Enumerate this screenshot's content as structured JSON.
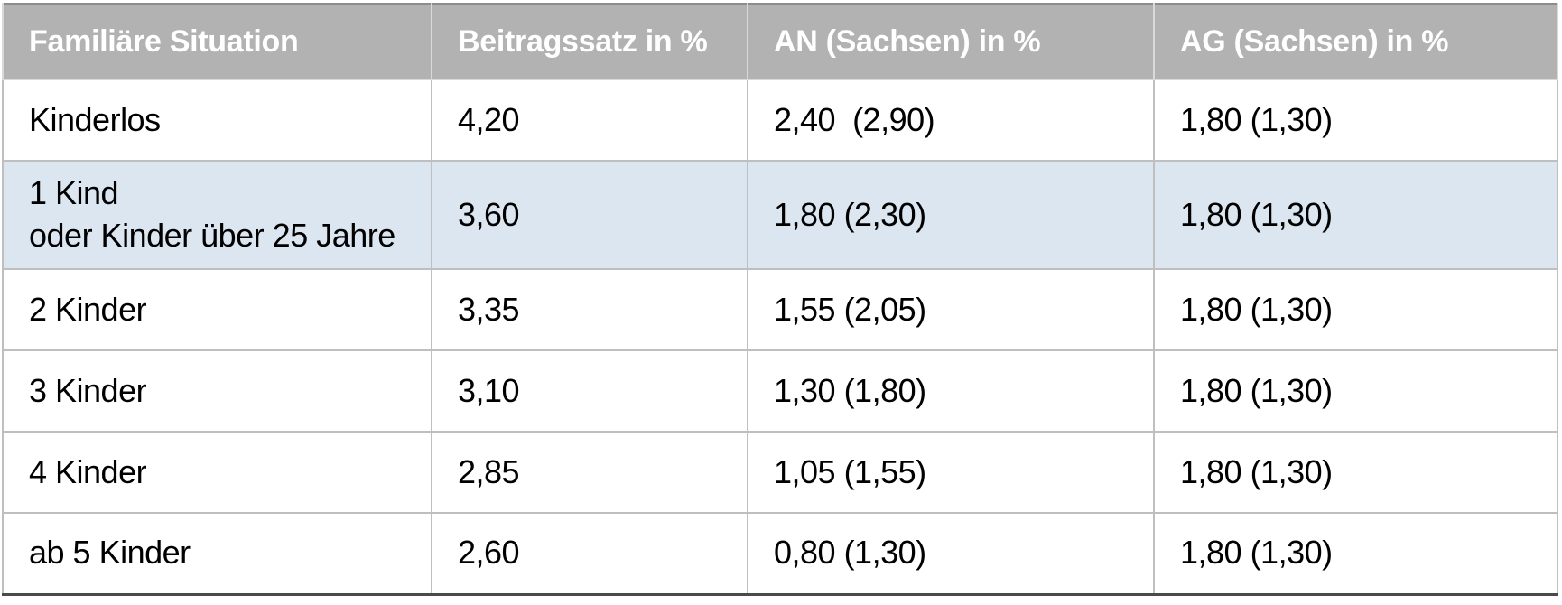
{
  "table": {
    "columns": [
      {
        "label": "Familiäre Situation"
      },
      {
        "label": "Beitragssatz in %"
      },
      {
        "label": "AN (Sachsen) in %"
      },
      {
        "label": "AG (Sachsen) in %"
      }
    ],
    "rows": [
      {
        "situation": "Kinderlos",
        "beitragssatz": "4,20",
        "an": "2,40  (2,90)",
        "ag": "1,80 (1,30)",
        "highlighted": false
      },
      {
        "situation": "1 Kind\noder Kinder über 25 Jahre",
        "beitragssatz": "3,60",
        "an": "1,80 (2,30)",
        "ag": "1,80 (1,30)",
        "highlighted": true
      },
      {
        "situation": "2 Kinder",
        "beitragssatz": "3,35",
        "an": "1,55 (2,05)",
        "ag": "1,80 (1,30)",
        "highlighted": false
      },
      {
        "situation": "3 Kinder",
        "beitragssatz": "3,10",
        "an": "1,30 (1,80)",
        "ag": "1,80 (1,30)",
        "highlighted": false
      },
      {
        "situation": "4 Kinder",
        "beitragssatz": "2,85",
        "an": "1,05 (1,55)",
        "ag": "1,80 (1,30)",
        "highlighted": false
      },
      {
        "situation": "ab 5 Kinder",
        "beitragssatz": "2,60",
        "an": "0,80 (1,30)",
        "ag": "1,80 (1,30)",
        "highlighted": false
      }
    ]
  },
  "chart_data": {
    "type": "table",
    "title": "",
    "columns": [
      "Familiäre Situation",
      "Beitragssatz in %",
      "AN (Sachsen) in %",
      "AG (Sachsen) in %"
    ],
    "rows": [
      [
        "Kinderlos",
        "4,20",
        "2,40  (2,90)",
        "1,80 (1,30)"
      ],
      [
        "1 Kind\noder Kinder über 25 Jahre",
        "3,60",
        "1,80 (2,30)",
        "1,80 (1,30)"
      ],
      [
        "2 Kinder",
        "3,35",
        "1,55 (2,05)",
        "1,80 (1,30)"
      ],
      [
        "3 Kinder",
        "3,10",
        "1,30 (1,80)",
        "1,80 (1,30)"
      ],
      [
        "4 Kinder",
        "2,85",
        "1,05 (1,55)",
        "1,80 (1,30)"
      ],
      [
        "ab 5 Kinder",
        "2,60",
        "0,80 (1,30)",
        "1,80 (1,30)"
      ]
    ]
  },
  "colors": {
    "header_background": "#b2b2b2",
    "header_text": "#ffffff",
    "highlight_row_background": "#dce6f1",
    "grid_line": "#bfbfbf",
    "outer_border": "#8c8c8c",
    "bottom_border": "#4a4a4a"
  }
}
